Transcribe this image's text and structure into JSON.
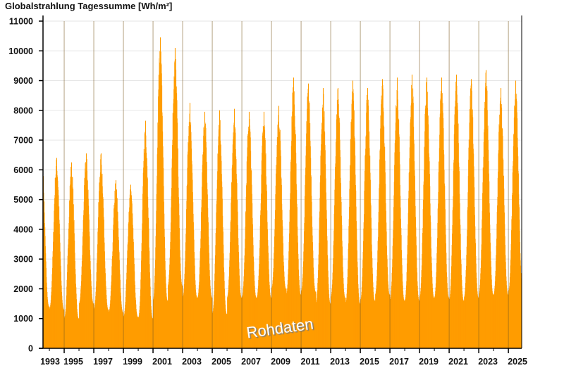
{
  "chart_data": {
    "type": "bar",
    "title": "Globalstrahlung Tagessumme [Wh/m²]",
    "xlabel": "",
    "ylabel": "",
    "ylim": [
      0,
      11000
    ],
    "xlim": [
      1993.57,
      2025.9
    ],
    "yticks": [
      0,
      1000,
      2000,
      3000,
      4000,
      5000,
      6000,
      7000,
      8000,
      9000,
      10000,
      11000
    ],
    "xticks": [
      1993,
      1995,
      1997,
      1999,
      2001,
      2003,
      2005,
      2007,
      2009,
      2011,
      2013,
      2015,
      2017,
      2019,
      2021,
      2023,
      2025
    ],
    "grid": true,
    "color": "#ff9c00",
    "annotation": "Rohdaten",
    "series": [
      {
        "name": "Globalstrahlung Tagessumme",
        "years": [
          1993,
          1994,
          1995,
          1996,
          1997,
          1998,
          1999,
          2000,
          2001,
          2002,
          2003,
          2004,
          2005,
          2006,
          2007,
          2008,
          2009,
          2010,
          2011,
          2012,
          2013,
          2014,
          2015,
          2016,
          2017,
          2018,
          2019,
          2020,
          2021,
          2022,
          2023,
          2024,
          2025
        ],
        "annual_peak": [
          6700,
          6400,
          6250,
          6550,
          6550,
          5650,
          5500,
          7650,
          10450,
          10100,
          8250,
          7950,
          8000,
          8050,
          7950,
          7950,
          8150,
          9100,
          8900,
          8750,
          8750,
          9000,
          8750,
          9050,
          9100,
          9200,
          9100,
          9100,
          9200,
          9050,
          9350,
          8750,
          9000
        ],
        "winter_min": [
          1400,
          1300,
          1000,
          1500,
          1300,
          1200,
          1050,
          1000,
          1600,
          2100,
          1700,
          1700,
          1150,
          1700,
          1700,
          1700,
          2000,
          1800,
          1900,
          1500,
          1700,
          1500,
          1600,
          1800,
          1600,
          1600,
          1700,
          1700,
          1600,
          1700,
          1800,
          1800,
          1900
        ]
      }
    ]
  }
}
